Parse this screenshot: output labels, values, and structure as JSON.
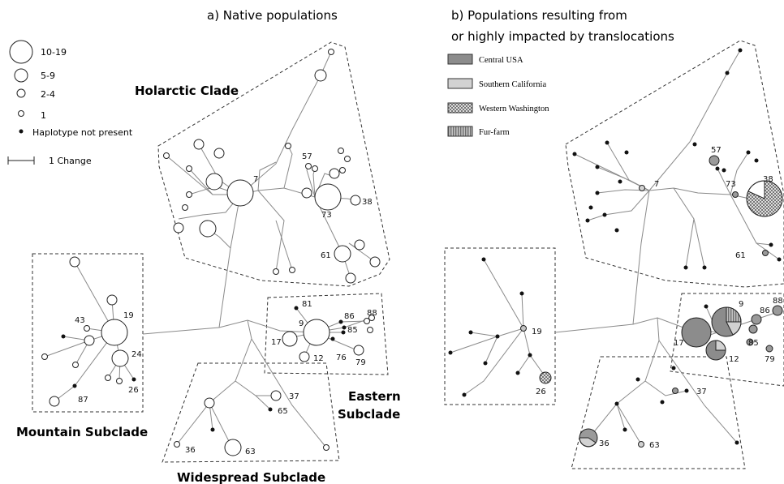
{
  "panel_a": {
    "title": "a) Native populations",
    "clades": {
      "holarctic": "Holarctic Clade",
      "mountain": "Mountain Subclade",
      "eastern_line1": "Eastern",
      "eastern_line2": "Subclade",
      "widespread": "Widespread Subclade"
    },
    "haplotype_labels": [
      "7",
      "57",
      "73",
      "38",
      "61",
      "81",
      "9",
      "86",
      "88",
      "17",
      "85",
      "12",
      "76",
      "79",
      "43",
      "19",
      "24",
      "26",
      "87",
      "37",
      "65",
      "36",
      "63"
    ]
  },
  "panel_b": {
    "title_line1": "b) Populations resulting from",
    "title_line2": "or highly impacted by translocations",
    "haplotype_labels": [
      "57",
      "7",
      "73",
      "38",
      "61",
      "9",
      "88",
      "86",
      "17",
      "85",
      "12",
      "79",
      "19",
      "26",
      "37",
      "36",
      "63"
    ]
  },
  "size_legend": {
    "items": [
      {
        "label": "10-19"
      },
      {
        "label": "5-9"
      },
      {
        "label": "2-4"
      },
      {
        "label": "1"
      },
      {
        "label": "Haplotype not present"
      }
    ],
    "scale_label": "1 Change"
  },
  "population_legend": {
    "items": [
      {
        "label": "Central USA",
        "pattern": "dark-gray",
        "color": "#8c8c8c"
      },
      {
        "label": "Southern California",
        "pattern": "light-gray",
        "color": "#d2d2d2"
      },
      {
        "label": "Western Washington",
        "pattern": "checker",
        "color": "#9a9a9a"
      },
      {
        "label": "Fur-farm",
        "pattern": "striped",
        "color": "#a8a8a8"
      }
    ]
  },
  "colors": {
    "line": "#8a8a8a",
    "node_stroke": "#222222",
    "box_border": "#333333"
  }
}
